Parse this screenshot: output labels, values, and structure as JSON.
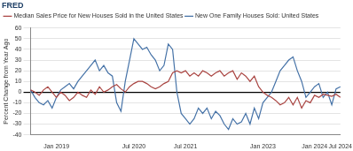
{
  "chart_data": {
    "type": "line",
    "title": "FRED",
    "y_label": "Percent Change from Year Ago",
    "categories": [
      null,
      null,
      null,
      null,
      null,
      null,
      "Jan 2019",
      null,
      null,
      null,
      null,
      null,
      null,
      null,
      null,
      null,
      null,
      null,
      null,
      null,
      null,
      null,
      null,
      null,
      "Jul 2020",
      null,
      null,
      null,
      null,
      null,
      null,
      null,
      null,
      null,
      null,
      null,
      "Jul 2021",
      null,
      null,
      null,
      null,
      null,
      null,
      null,
      null,
      null,
      null,
      null,
      null,
      null,
      null,
      null,
      null,
      null,
      "Jan 2023",
      null,
      null,
      null,
      null,
      null,
      null,
      null,
      null,
      null,
      null,
      null,
      "Jan 2024",
      null,
      null,
      null,
      null,
      null,
      "Jul 2024"
    ],
    "series": [
      {
        "name": "Median Sales Price for New Houses Sold in the United States",
        "color": "#aa4643",
        "values": [
          2,
          0,
          -3,
          2,
          5,
          0,
          -5,
          0,
          -3,
          -8,
          -5,
          0,
          -3,
          -5,
          2,
          -2,
          5,
          0,
          2,
          5,
          7,
          3,
          0,
          5,
          8,
          10,
          10,
          8,
          5,
          3,
          5,
          8,
          10,
          18,
          20,
          18,
          20,
          15,
          18,
          15,
          20,
          18,
          15,
          18,
          20,
          15,
          18,
          20,
          12,
          18,
          15,
          10,
          15,
          5,
          0,
          -3,
          -5,
          -8,
          -12,
          -10,
          -5,
          -12,
          -5,
          -15,
          -8,
          -10,
          -3,
          -5,
          -2,
          -3,
          -4,
          -2,
          -5
        ]
      },
      {
        "name": "New One Family Houses Sold: United States",
        "color": "#4572a7",
        "values": [
          2,
          -5,
          -10,
          -12,
          -8,
          -15,
          -5,
          2,
          5,
          8,
          3,
          10,
          15,
          20,
          25,
          30,
          20,
          25,
          18,
          15,
          -10,
          -18,
          10,
          30,
          50,
          45,
          40,
          42,
          35,
          30,
          20,
          25,
          45,
          40,
          0,
          -20,
          -25,
          -30,
          -25,
          -15,
          -20,
          -15,
          -25,
          -18,
          -22,
          -30,
          -35,
          -25,
          -30,
          -28,
          -20,
          -30,
          -15,
          -25,
          -10,
          -5,
          0,
          10,
          20,
          25,
          30,
          33,
          20,
          10,
          -5,
          0,
          5,
          8,
          -5,
          0,
          -12,
          3,
          5
        ]
      }
    ],
    "ylim": [
      -40,
      60
    ],
    "yticks": [
      -40,
      -30,
      -20,
      -10,
      0,
      10,
      20,
      30,
      40,
      50,
      60
    ],
    "grid": true,
    "legend": "top-left"
  }
}
